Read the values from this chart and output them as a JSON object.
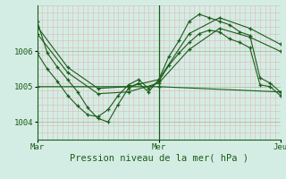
{
  "bg_color": "#d4ede4",
  "line_color": "#1a5c1a",
  "grid_color_major": "#a8c8a8",
  "grid_color_minor": "#e0b8b8",
  "xlabel_text": "Pression niveau de la mer( hPa )",
  "xtick_labels": [
    "Mar",
    "Mer",
    "Jeu"
  ],
  "xtick_positions": [
    0,
    48,
    96
  ],
  "ytick_labels": [
    "1004",
    "1005",
    "1006"
  ],
  "ytick_values": [
    1004,
    1005,
    1006
  ],
  "ymin": 1003.5,
  "ymax": 1007.3,
  "xmin": 0,
  "xmax": 96,
  "vline_x": 48,
  "series": [
    [
      0,
      1006.85,
      4,
      1005.95,
      8,
      1005.55,
      12,
      1005.2,
      16,
      1004.85,
      20,
      1004.4,
      24,
      1004.1,
      28,
      1004.0,
      32,
      1004.5,
      36,
      1004.95,
      40,
      1005.1,
      44,
      1004.85,
      48,
      1005.2,
      52,
      1005.85,
      56,
      1006.3,
      60,
      1006.85,
      64,
      1007.05,
      68,
      1006.95,
      72,
      1006.85,
      76,
      1006.75,
      80,
      1006.55,
      84,
      1006.45,
      88,
      1005.25,
      92,
      1005.1,
      96,
      1004.85
    ],
    [
      0,
      1005.95,
      4,
      1005.5,
      8,
      1005.15,
      12,
      1004.75,
      16,
      1004.45,
      20,
      1004.2,
      24,
      1004.15,
      28,
      1004.35,
      32,
      1004.75,
      36,
      1005.05,
      40,
      1005.2,
      44,
      1004.95,
      48,
      1005.15,
      52,
      1005.6,
      56,
      1005.95,
      60,
      1006.25,
      64,
      1006.5,
      68,
      1006.6,
      72,
      1006.55,
      76,
      1006.35,
      80,
      1006.25,
      84,
      1006.1,
      88,
      1005.05,
      92,
      1005.0,
      96,
      1004.75
    ],
    [
      0,
      1006.7,
      12,
      1005.55,
      24,
      1004.95,
      36,
      1005.0,
      48,
      1005.2,
      60,
      1006.5,
      72,
      1006.95,
      84,
      1006.65,
      96,
      1006.2
    ],
    [
      0,
      1006.5,
      12,
      1005.4,
      24,
      1004.8,
      36,
      1004.85,
      48,
      1005.1,
      60,
      1006.05,
      72,
      1006.65,
      84,
      1006.4,
      96,
      1006.0
    ],
    [
      0,
      1005.0,
      48,
      1005.0,
      96,
      1004.85
    ]
  ]
}
